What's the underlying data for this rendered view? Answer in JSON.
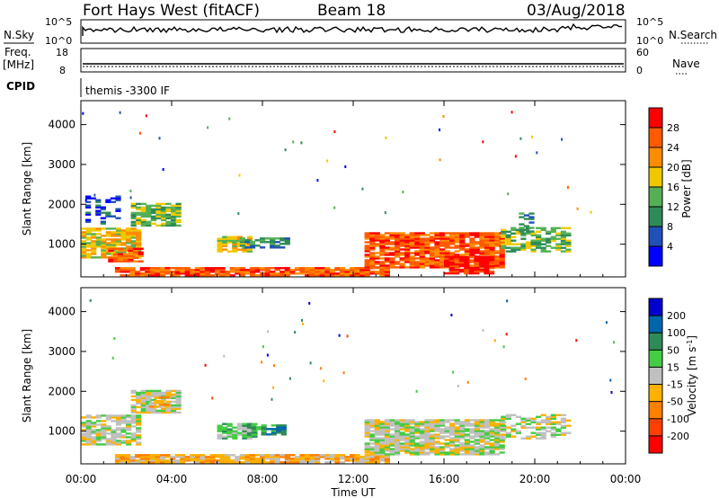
{
  "header": {
    "title": "Fort Hays West (fitACF)",
    "beam": "Beam 18",
    "date": "03/Aug/2018"
  },
  "small_panels": {
    "nsky_label": "N.Sky",
    "nsky_ticks": [
      "10^5",
      "10^0"
    ],
    "nsearch_label": "N.Search",
    "nsearch_ticks": [
      "10^5",
      "10^0"
    ],
    "freq_label_1": "Freq.",
    "freq_label_2": "[MHz]",
    "freq_ticks": [
      "18",
      "8"
    ],
    "nave_label": "Nave",
    "nave_ticks": [
      "60",
      "0"
    ],
    "cpid_label": "CPID",
    "cpid_text": "themis -3300 IF"
  },
  "colors": {
    "power": [
      "#0000ff",
      "#2050b8",
      "#2e8b57",
      "#55b055",
      "#f0c800",
      "#ff8c00",
      "#ff5a00",
      "#ff0000"
    ],
    "velocity": [
      "#0000cc",
      "#0066aa",
      "#2e8b57",
      "#44cc44",
      "#c0c0c0",
      "#ffb000",
      "#ff7f00",
      "#ff4000",
      "#ff0000"
    ]
  },
  "chart_data": [
    {
      "type": "heatmap",
      "name": "power",
      "ylabel": "Slant Range [km]",
      "ylim": [
        180,
        4600
      ],
      "yticks": [
        "1000",
        "2000",
        "3000",
        "4000"
      ],
      "ytick_values": [
        1000,
        2000,
        3000,
        4000
      ],
      "colorbar_label": "Power [dB]",
      "colorbar_ticks": [
        "4",
        "8",
        "12",
        "16",
        "20",
        "24",
        "28"
      ],
      "colorbar_range": [
        0,
        32
      ],
      "regions": [
        {
          "t0": 0.0,
          "t1": 2.6,
          "r0": 650,
          "r1": 1400,
          "level": 4,
          "density": 0.85
        },
        {
          "t0": 0.2,
          "t1": 1.6,
          "r0": 1500,
          "r1": 2200,
          "level": 1,
          "density": 0.35
        },
        {
          "t0": 2.2,
          "t1": 4.2,
          "r0": 1450,
          "r1": 2000,
          "level": 3,
          "density": 0.75
        },
        {
          "t0": 1.2,
          "t1": 2.6,
          "r0": 550,
          "r1": 900,
          "level": 6,
          "density": 0.7
        },
        {
          "t0": 6.0,
          "t1": 7.4,
          "r0": 800,
          "r1": 1200,
          "level": 4,
          "density": 0.8
        },
        {
          "t0": 7.0,
          "t1": 9.0,
          "r0": 900,
          "r1": 1150,
          "level": 2,
          "density": 0.7
        },
        {
          "t0": 1.5,
          "t1": 13.5,
          "r0": 200,
          "r1": 400,
          "level": 6,
          "density": 0.9
        },
        {
          "t0": 12.5,
          "t1": 18.5,
          "r0": 400,
          "r1": 1300,
          "level": 6,
          "density": 0.85
        },
        {
          "t0": 16.0,
          "t1": 18.0,
          "r0": 250,
          "r1": 700,
          "level": 7,
          "density": 0.8
        },
        {
          "t0": 18.5,
          "t1": 21.5,
          "r0": 800,
          "r1": 1400,
          "level": 3,
          "density": 0.55
        },
        {
          "t0": 19.3,
          "t1": 19.8,
          "r0": 1300,
          "r1": 1800,
          "level": 2,
          "density": 0.5
        }
      ]
    },
    {
      "type": "heatmap",
      "name": "velocity",
      "ylabel": "Slant Range [km]",
      "ylim": [
        180,
        4600
      ],
      "yticks": [
        "1000",
        "2000",
        "3000",
        "4000"
      ],
      "ytick_values": [
        1000,
        2000,
        3000,
        4000
      ],
      "xlabel": "Time UT",
      "xticks": [
        "00:00",
        "04:00",
        "08:00",
        "12:00",
        "16:00",
        "20:00",
        "00:00"
      ],
      "xtick_values": [
        0,
        4,
        8,
        12,
        16,
        20,
        24
      ],
      "xlim": [
        0,
        24
      ],
      "colorbar_label": "Velocity [m s^-1]",
      "colorbar_ticks": [
        "200",
        "100",
        "50",
        "15",
        "-15",
        "-50",
        "-100",
        "-200"
      ],
      "regions": [
        {
          "t0": 0.0,
          "t1": 2.6,
          "r0": 650,
          "r1": 1400,
          "level": 4,
          "density": 0.8
        },
        {
          "t0": 2.2,
          "t1": 4.2,
          "r0": 1450,
          "r1": 2000,
          "level": 4,
          "density": 0.8
        },
        {
          "t0": 3.0,
          "t1": 3.8,
          "r0": 1600,
          "r1": 1850,
          "level": 5,
          "density": 0.5
        },
        {
          "t0": 6.0,
          "t1": 7.6,
          "r0": 800,
          "r1": 1200,
          "level": 3,
          "density": 0.8
        },
        {
          "t0": 7.5,
          "t1": 9.0,
          "r0": 900,
          "r1": 1150,
          "level": 2,
          "density": 0.6
        },
        {
          "t0": 1.5,
          "t1": 13.5,
          "r0": 200,
          "r1": 400,
          "level": 5,
          "density": 0.9
        },
        {
          "t0": 12.5,
          "t1": 18.5,
          "r0": 400,
          "r1": 1300,
          "level": 4,
          "density": 0.85
        },
        {
          "t0": 18.5,
          "t1": 21.5,
          "r0": 800,
          "r1": 1400,
          "level": 4,
          "density": 0.55
        }
      ]
    }
  ]
}
